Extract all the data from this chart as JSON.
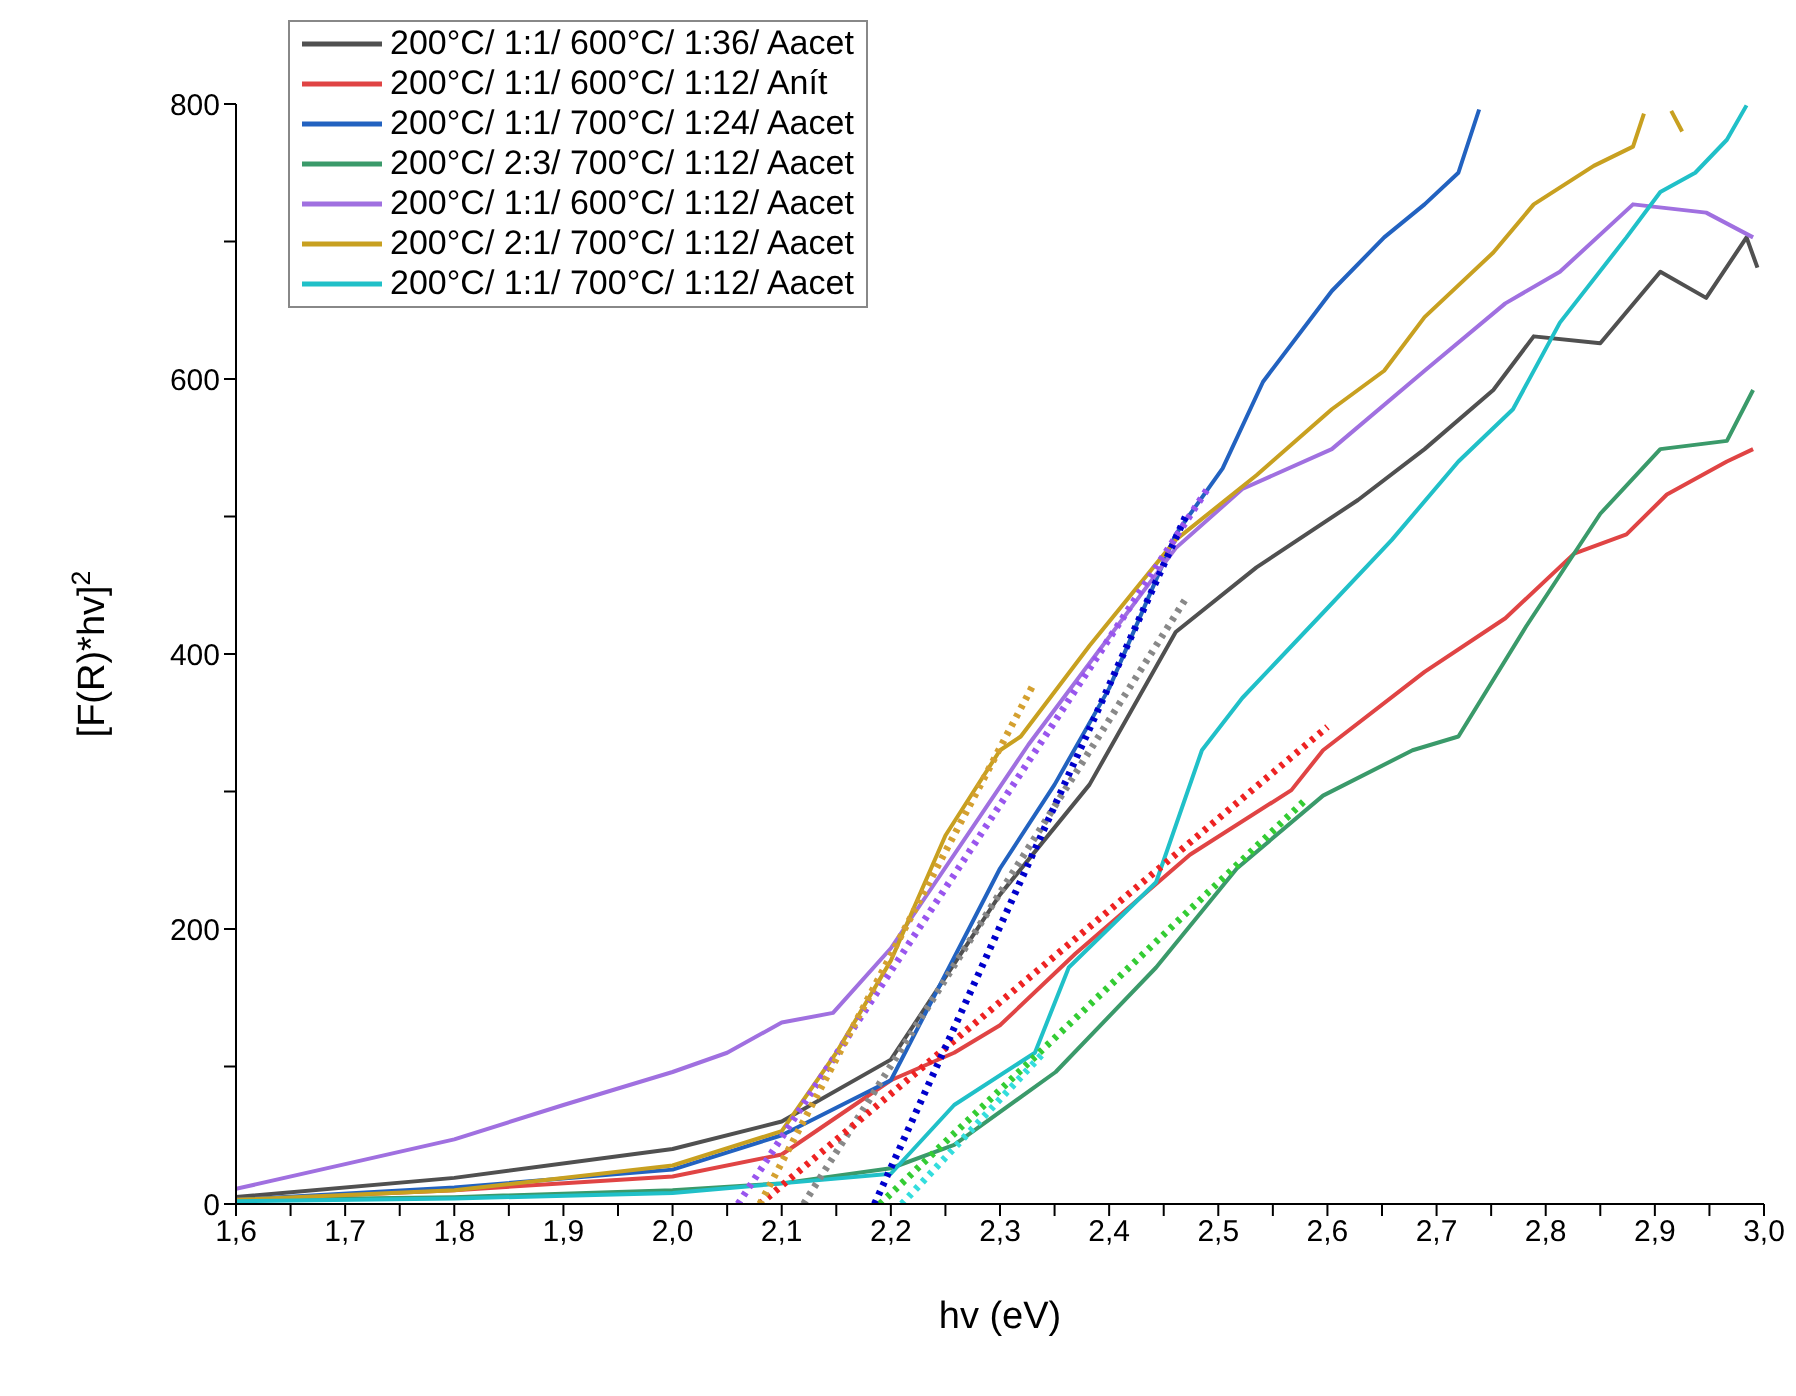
{
  "chart_data": {
    "type": "line",
    "xlabel": "hv (eV)",
    "ylabel": "[F(R)*hv]$^{2}$",
    "xlim": [
      1.6,
      3.0
    ],
    "ylim": [
      0,
      800
    ],
    "xticks": [
      {
        "value": 1.6,
        "label": "1,6"
      },
      {
        "value": 1.65,
        "label": null
      },
      {
        "value": 1.7,
        "label": "1,7"
      },
      {
        "value": 1.75,
        "label": null
      },
      {
        "value": 1.8,
        "label": "1,8"
      },
      {
        "value": 1.85,
        "label": null
      },
      {
        "value": 1.9,
        "label": "1,9"
      },
      {
        "value": 1.95,
        "label": null
      },
      {
        "value": 2.0,
        "label": "2,0"
      },
      {
        "value": 2.05,
        "label": null
      },
      {
        "value": 2.1,
        "label": "2,1"
      },
      {
        "value": 2.15,
        "label": null
      },
      {
        "value": 2.2,
        "label": "2,2"
      },
      {
        "value": 2.25,
        "label": null
      },
      {
        "value": 2.3,
        "label": "2,3"
      },
      {
        "value": 2.35,
        "label": null
      },
      {
        "value": 2.4,
        "label": "2,4"
      },
      {
        "value": 2.45,
        "label": null
      },
      {
        "value": 2.5,
        "label": "2,5"
      },
      {
        "value": 2.55,
        "label": null
      },
      {
        "value": 2.6,
        "label": "2,6"
      },
      {
        "value": 2.65,
        "label": null
      },
      {
        "value": 2.7,
        "label": "2,7"
      },
      {
        "value": 2.75,
        "label": null
      },
      {
        "value": 2.8,
        "label": "2,8"
      },
      {
        "value": 2.85,
        "label": null
      },
      {
        "value": 2.9,
        "label": "2,9"
      },
      {
        "value": 2.95,
        "label": null
      },
      {
        "value": 3.0,
        "label": "3,0"
      }
    ],
    "yticks": [
      0,
      {
        "value": 100,
        "label": null
      },
      200,
      {
        "value": 300,
        "label": null
      },
      400,
      {
        "value": 500,
        "label": null
      },
      600,
      {
        "value": 700,
        "label": null
      },
      800
    ],
    "grid": false,
    "legend": "top left",
    "marker": "none",
    "line_style": "solid",
    "series": [
      {
        "name": "200°C/ 1:1/ 600°C/ 1:36/ Aacet",
        "color": "#505050",
        "x": [
          1.6,
          1.8,
          2.0,
          2.1,
          2.2,
          2.3,
          2.382,
          2.461,
          2.535,
          2.628,
          2.689,
          2.752,
          2.789,
          2.85,
          2.905,
          2.947,
          2.984,
          2.994
        ],
        "values": [
          5,
          19,
          40,
          60,
          105,
          225,
          305,
          416,
          463,
          512,
          549,
          592,
          631,
          626,
          678,
          659,
          703,
          681
        ]
      },
      {
        "name": "200°C/ 1:1/ 600°C/ 1:12/ Anít",
        "color": "#e04444",
        "x": [
          1.6,
          1.8,
          2.0,
          2.1,
          2.2,
          2.258,
          2.3,
          2.369,
          2.474,
          2.567,
          2.596,
          2.689,
          2.763,
          2.826,
          2.874,
          2.911,
          2.966,
          2.99
        ],
        "values": [
          3,
          10,
          20,
          36,
          90,
          110,
          130,
          182,
          254,
          301,
          330,
          387,
          426,
          473,
          487,
          516,
          540,
          549
        ]
      },
      {
        "name": "200°C/ 1:1/ 700°C/ 1:24/ Aacet",
        "color": "#2262c0",
        "x": [
          1.6,
          1.8,
          2.0,
          2.1,
          2.2,
          2.3,
          2.35,
          2.4,
          2.461,
          2.504,
          2.541,
          2.604,
          2.652,
          2.689,
          2.72,
          2.739
        ],
        "values": [
          3,
          12,
          25,
          50,
          90,
          244,
          305,
          375,
          487,
          535,
          598,
          664,
          703,
          727,
          750,
          796
        ]
      },
      {
        "name": "200°C/ 2:3/ 700°C/ 1:12/ Aacet",
        "color": "#3a9a6a",
        "x": [
          1.6,
          1.8,
          2.0,
          2.1,
          2.2,
          2.258,
          2.351,
          2.443,
          2.517,
          2.596,
          2.678,
          2.72,
          2.782,
          2.85,
          2.905,
          2.966,
          2.99
        ],
        "values": [
          3,
          5,
          10,
          15,
          26,
          43,
          96,
          172,
          244,
          297,
          330,
          340,
          420,
          502,
          549,
          555,
          592
        ]
      },
      {
        "name": "200°C/ 1:1/ 600°C/ 1:12/ Aacet",
        "color": "#a070e0",
        "x": [
          1.6,
          1.7,
          1.8,
          1.9,
          2.0,
          2.05,
          2.1,
          2.147,
          2.2,
          2.326,
          2.461,
          2.522,
          2.604,
          2.689,
          2.763,
          2.813,
          2.88,
          2.947,
          2.99
        ],
        "values": [
          11,
          29,
          47,
          72,
          96,
          110,
          132,
          139,
          186,
          334,
          477,
          520,
          549,
          606,
          655,
          678,
          727,
          721,
          703
        ]
      },
      {
        "name": "200°C/ 2:1/ 700°C/ 1:12/ Aacet",
        "color": "#c8a020",
        "x": [
          1.6,
          1.8,
          2.0,
          2.1,
          2.15,
          2.2,
          2.25,
          2.3,
          2.319,
          2.382,
          2.461,
          2.535,
          2.604,
          2.652,
          2.689,
          2.752,
          2.789,
          2.844,
          2.88,
          2.89,
          2.9,
          2.915,
          2.925
        ],
        "values": [
          3,
          10,
          28,
          53,
          110,
          177,
          268,
          330,
          340,
          406,
          483,
          530,
          578,
          606,
          645,
          692,
          727,
          755,
          769,
          793,
          null,
          795,
          780
        ]
      },
      {
        "name": "200°C/ 1:1/ 700°C/ 1:12/ Aacet",
        "color": "#20c0c8",
        "x": [
          1.6,
          1.8,
          2.0,
          2.1,
          2.2,
          2.258,
          2.332,
          2.363,
          2.443,
          2.485,
          2.522,
          2.596,
          2.659,
          2.72,
          2.77,
          2.813,
          2.874,
          2.905,
          2.937,
          2.966,
          2.984
        ],
        "values": [
          2,
          4,
          8,
          15,
          22,
          72,
          110,
          172,
          234,
          330,
          368,
          430,
          483,
          540,
          578,
          641,
          703,
          736,
          750,
          774,
          799
        ]
      },
      {
        "color": "#888888",
        "line_style": "dotted",
        "x": [
          2.12,
          2.47
        ],
        "values": [
          0,
          440
        ]
      },
      {
        "color": "#ee2222",
        "line_style": "dotted",
        "x": [
          2.08,
          2.6
        ],
        "values": [
          0,
          347
        ]
      },
      {
        "color": "#0000cc",
        "line_style": "dotted",
        "x": [
          2.185,
          2.47
        ],
        "values": [
          0,
          500
        ]
      },
      {
        "color": "#33cc33",
        "line_style": "dotted",
        "x": [
          2.19,
          2.58
        ],
        "values": [
          0,
          294
        ]
      },
      {
        "color": "#9955ee",
        "line_style": "dotted",
        "x": [
          2.06,
          2.49
        ],
        "values": [
          0,
          520
        ]
      },
      {
        "color": "#d4a030",
        "line_style": "dotted",
        "x": [
          2.08,
          2.33
        ],
        "values": [
          0,
          377
        ]
      },
      {
        "color": "#33dddd",
        "line_style": "dotted",
        "x": [
          2.21,
          2.34
        ],
        "values": [
          0,
          110
        ]
      }
    ]
  }
}
